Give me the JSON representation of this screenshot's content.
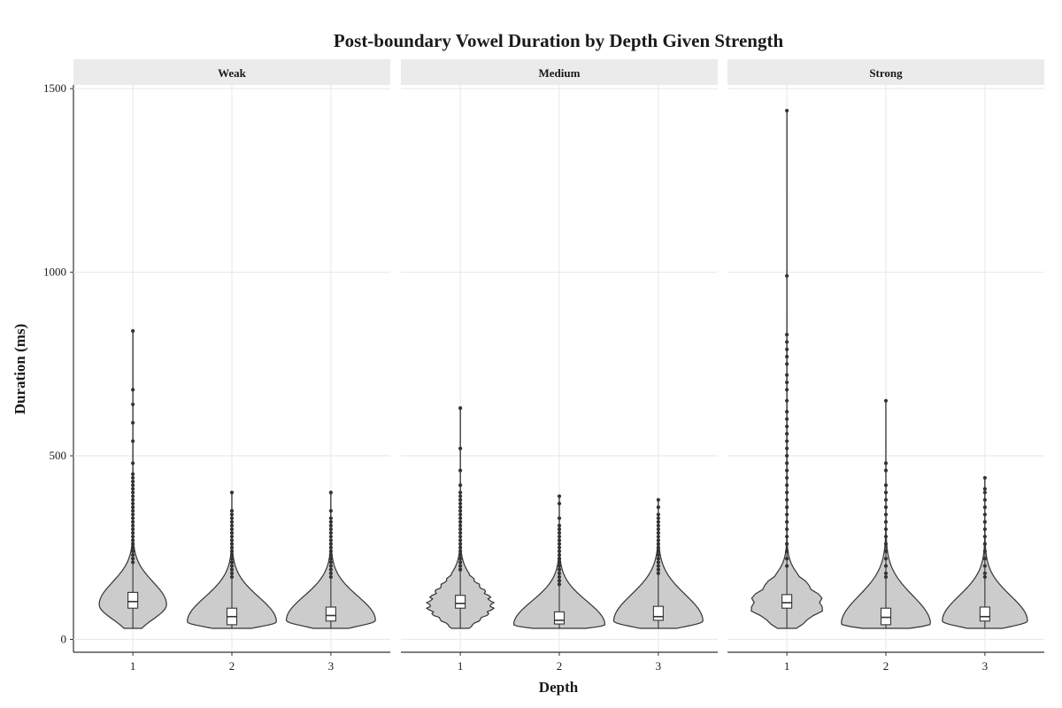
{
  "chart_data": {
    "type": "violin",
    "title": "Post-boundary Vowel Duration by Depth Given Strength",
    "xlabel": "Depth",
    "ylabel": "Duration (ms)",
    "categories": [
      "1",
      "2",
      "3"
    ],
    "yticks": [
      0,
      500,
      1000,
      1500
    ],
    "ylim": [
      -35,
      1510
    ],
    "grid": true,
    "legend": "none",
    "colors": {
      "violin_fill": "#cccccc",
      "outline": "#333333",
      "box_fill": "#ffffff",
      "strip_bg": "#ebebeb",
      "grid": "#ebebeb"
    },
    "panels": [
      {
        "label": "Weak",
        "groups": [
          {
            "depth": "1",
            "min": 30,
            "q1": 85,
            "median": 103,
            "q3": 128,
            "whisker_high": 205,
            "max": 840,
            "mode": 95,
            "mode_halfwidth": 0.34,
            "outliers": [
              840,
              680,
              640,
              590,
              540,
              480,
              450,
              440,
              430,
              420,
              410,
              400,
              390,
              380,
              370,
              360,
              350,
              340,
              330,
              320,
              310,
              300,
              290,
              280,
              270,
              260,
              250,
              240,
              230,
              220,
              210
            ]
          },
          {
            "depth": "2",
            "min": 30,
            "q1": 40,
            "median": 62,
            "q3": 85,
            "whisker_high": 160,
            "max": 400,
            "mode": 48,
            "mode_halfwidth": 0.45,
            "outliers": [
              400,
              350,
              340,
              330,
              320,
              310,
              300,
              290,
              280,
              270,
              260,
              250,
              240,
              230,
              220,
              210,
              200,
              190,
              180,
              170
            ]
          },
          {
            "depth": "3",
            "min": 30,
            "q1": 50,
            "median": 65,
            "q3": 88,
            "whisker_high": 165,
            "max": 400,
            "mode": 52,
            "mode_halfwidth": 0.45,
            "outliers": [
              400,
              350,
              330,
              320,
              310,
              300,
              290,
              280,
              270,
              260,
              250,
              240,
              230,
              220,
              210,
              200,
              190,
              180,
              170
            ]
          }
        ]
      },
      {
        "label": "Medium",
        "groups": [
          {
            "depth": "1",
            "min": 30,
            "q1": 85,
            "median": 98,
            "q3": 120,
            "whisker_high": 180,
            "max": 630,
            "mode": 90,
            "mode_halfwidth": 0.32,
            "outliers": [
              630,
              520,
              460,
              420,
              400,
              390,
              380,
              370,
              360,
              350,
              340,
              330,
              320,
              310,
              300,
              290,
              280,
              270,
              260,
              250,
              240,
              230,
              220,
              210,
              200,
              190
            ]
          },
          {
            "depth": "2",
            "min": 30,
            "q1": 42,
            "median": 52,
            "q3": 75,
            "whisker_high": 140,
            "max": 390,
            "mode": 40,
            "mode_halfwidth": 0.46,
            "outliers": [
              390,
              370,
              330,
              310,
              300,
              290,
              280,
              270,
              260,
              250,
              240,
              230,
              220,
              210,
              200,
              190,
              180,
              170,
              160,
              150
            ]
          },
          {
            "depth": "3",
            "min": 30,
            "q1": 52,
            "median": 62,
            "q3": 90,
            "whisker_high": 170,
            "max": 380,
            "mode": 50,
            "mode_halfwidth": 0.45,
            "outliers": [
              380,
              360,
              340,
              330,
              320,
              310,
              300,
              290,
              280,
              270,
              260,
              250,
              240,
              230,
              220,
              210,
              200,
              190,
              180
            ]
          }
        ]
      },
      {
        "label": "Strong",
        "groups": [
          {
            "depth": "1",
            "min": 30,
            "q1": 85,
            "median": 100,
            "q3": 122,
            "whisker_high": 190,
            "max": 1440,
            "mode": 92,
            "mode_halfwidth": 0.36,
            "outliers": [
              1440,
              990,
              830,
              810,
              790,
              770,
              750,
              720,
              700,
              680,
              650,
              620,
              600,
              580,
              560,
              540,
              520,
              500,
              480,
              460,
              440,
              420,
              400,
              380,
              360,
              340,
              320,
              300,
              280,
              260,
              240,
              220,
              200
            ]
          },
          {
            "depth": "2",
            "min": 30,
            "q1": 40,
            "median": 60,
            "q3": 85,
            "whisker_high": 160,
            "max": 650,
            "mode": 42,
            "mode_halfwidth": 0.45,
            "outliers": [
              650,
              480,
              460,
              420,
              400,
              380,
              360,
              340,
              320,
              300,
              280,
              260,
              240,
              220,
              200,
              180,
              170
            ]
          },
          {
            "depth": "3",
            "min": 30,
            "q1": 50,
            "median": 62,
            "q3": 88,
            "whisker_high": 160,
            "max": 440,
            "mode": 50,
            "mode_halfwidth": 0.43,
            "outliers": [
              440,
              410,
              400,
              380,
              360,
              340,
              320,
              300,
              280,
              260,
              240,
              220,
              200,
              180,
              170
            ]
          }
        ]
      }
    ]
  }
}
